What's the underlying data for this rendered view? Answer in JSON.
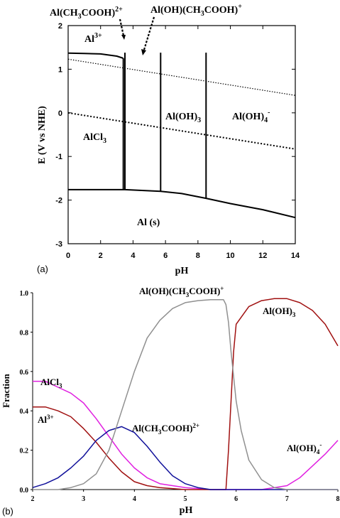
{
  "chart_data": [
    {
      "type": "line",
      "panel_label": "(a)",
      "xlabel": "pH",
      "ylabel": "E (V vs NHE)",
      "xlim": [
        0,
        14
      ],
      "ylim": [
        -3,
        2
      ],
      "xticks": [
        "0",
        "2",
        "4",
        "6",
        "8",
        "10",
        "12",
        "14"
      ],
      "yticks": [
        "2",
        "1",
        "0",
        "-1",
        "-2",
        "-3"
      ],
      "boundaries": [
        {
          "name": "upper",
          "x": [
            0,
            1,
            2,
            3,
            3.4
          ],
          "y": [
            1.37,
            1.36,
            1.35,
            1.3,
            1.25
          ]
        },
        {
          "name": "lower",
          "x": [
            0,
            3.5,
            5.7,
            7,
            8.5,
            10,
            12,
            14
          ],
          "y": [
            -1.76,
            -1.76,
            -1.8,
            -1.85,
            -1.96,
            -2.08,
            -2.22,
            -2.4
          ]
        },
        {
          "name": "v1",
          "x": [
            3.4,
            3.4
          ],
          "y": [
            1.25,
            -1.76
          ]
        },
        {
          "name": "v2",
          "x": [
            3.5,
            3.5
          ],
          "y": [
            -1.76,
            1.38
          ]
        },
        {
          "name": "v3",
          "x": [
            5.7,
            5.7
          ],
          "y": [
            -1.8,
            1.38
          ]
        },
        {
          "name": "v4",
          "x": [
            8.5,
            8.5
          ],
          "y": [
            -1.96,
            1.38
          ]
        }
      ],
      "dotted_lines": [
        {
          "x": [
            0,
            14
          ],
          "y": [
            1.23,
            0.4
          ]
        },
        {
          "x": [
            0,
            14
          ],
          "y": [
            0.0,
            -0.83
          ]
        }
      ],
      "region_labels": {
        "al3": "Al",
        "al3_sup": "3+",
        "alcl3": "AlCl",
        "alcl3_sub": "3",
        "aloh3": "Al(OH)",
        "aloh3_sub": "3",
        "aloh4": "Al(OH)",
        "aloh4_sub": "4",
        "aloh4_sup": "-",
        "als": "Al (s)"
      },
      "annotations": {
        "ac_a": "Al(CH",
        "ac_b": "3",
        "ac_c": "COOH)",
        "ac_d": "2+",
        "ohac_a": "Al(OH)(CH",
        "ohac_b": "3",
        "ohac_c": "COOH)",
        "ohac_d": "+"
      }
    },
    {
      "type": "line",
      "panel_label": "(b)",
      "xlabel": "pH",
      "ylabel": "Fraction",
      "xlim": [
        2,
        8
      ],
      "ylim": [
        0,
        1
      ],
      "xticks": [
        "2",
        "3",
        "4",
        "5",
        "6",
        "7",
        "8"
      ],
      "yticks": [
        "1.0",
        "0.8",
        "0.6",
        "0.4",
        "0.2",
        "0.0"
      ],
      "series": [
        {
          "color": "#e020e0",
          "x": [
            2,
            2.25,
            2.5,
            2.75,
            3,
            3.25,
            3.5,
            3.75,
            4,
            4.25,
            4.5,
            4.75,
            5,
            5.5,
            6,
            6.5,
            7,
            7.25,
            7.5,
            7.75,
            8
          ],
          "y": [
            0.55,
            0.55,
            0.52,
            0.49,
            0.44,
            0.36,
            0.27,
            0.18,
            0.11,
            0.06,
            0.03,
            0.02,
            0.01,
            0.0,
            0.0,
            0.0,
            0.02,
            0.06,
            0.12,
            0.18,
            0.25
          ]
        },
        {
          "color": "#a01010",
          "x": [
            2,
            2.25,
            2.5,
            2.75,
            3,
            3.25,
            3.5,
            3.75,
            4,
            4.25,
            4.5,
            4.75,
            5,
            5.5,
            5.8,
            5.85,
            5.9,
            5.95,
            6,
            6.25,
            6.5,
            6.75,
            7,
            7.25,
            7.5,
            7.75,
            8
          ],
          "y": [
            0.42,
            0.42,
            0.4,
            0.37,
            0.31,
            0.24,
            0.16,
            0.09,
            0.04,
            0.02,
            0.01,
            0.005,
            0.0,
            0.0,
            0.0,
            0.2,
            0.45,
            0.7,
            0.84,
            0.93,
            0.96,
            0.97,
            0.97,
            0.95,
            0.91,
            0.84,
            0.73
          ]
        },
        {
          "color": "#10109a",
          "x": [
            2,
            2.25,
            2.5,
            2.75,
            3,
            3.25,
            3.5,
            3.75,
            4,
            4.25,
            4.5,
            4.75,
            5,
            5.25,
            5.5,
            6,
            7,
            8
          ],
          "y": [
            0.01,
            0.03,
            0.06,
            0.11,
            0.17,
            0.25,
            0.3,
            0.32,
            0.29,
            0.22,
            0.14,
            0.07,
            0.03,
            0.01,
            0.0,
            0.0,
            0.0,
            0.0
          ]
        },
        {
          "color": "#909090",
          "x": [
            2,
            2.5,
            2.75,
            3,
            3.25,
            3.5,
            3.75,
            4,
            4.25,
            4.5,
            4.75,
            5,
            5.25,
            5.5,
            5.75,
            5.8,
            5.85,
            5.9,
            6,
            6.1,
            6.25,
            6.5,
            6.75,
            7,
            8
          ],
          "y": [
            0.0,
            0.0,
            0.01,
            0.03,
            0.08,
            0.2,
            0.4,
            0.6,
            0.77,
            0.86,
            0.92,
            0.95,
            0.96,
            0.965,
            0.965,
            0.94,
            0.85,
            0.7,
            0.45,
            0.3,
            0.15,
            0.05,
            0.01,
            0.0,
            0.0
          ]
        }
      ],
      "labels": {
        "alcl3": "AlCl",
        "alcl3_sub": "3",
        "al3": "Al",
        "al3_sup": "3+",
        "ac_a": "Al(CH",
        "ac_b": "3",
        "ac_c": "COOH)",
        "ac_d": "2+",
        "ohac_a": "Al(OH)(CH",
        "ohac_b": "3",
        "ohac_c": "COOH)",
        "ohac_d": "+",
        "aloh3": "Al(OH)",
        "aloh3_sub": "3",
        "aloh4": "Al(OH)",
        "aloh4_sub": "4",
        "aloh4_sup": "-"
      }
    }
  ]
}
